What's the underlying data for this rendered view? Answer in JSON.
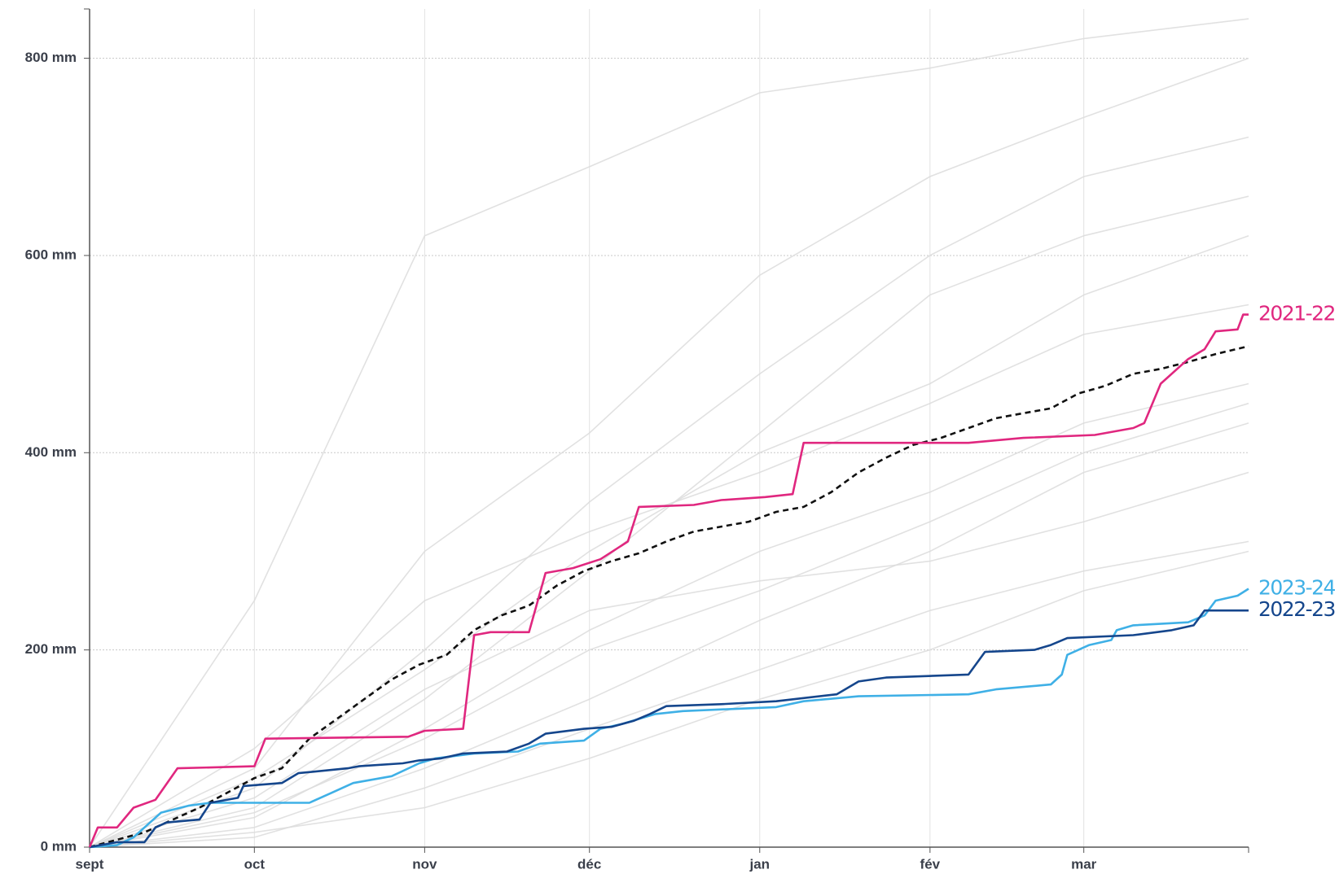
{
  "chart_data": {
    "type": "line",
    "xlim": [
      0,
      211
    ],
    "ylim": [
      0,
      850
    ],
    "xticks": [
      {
        "value": 0,
        "label": "sept"
      },
      {
        "value": 30,
        "label": "oct"
      },
      {
        "value": 61,
        "label": "nov"
      },
      {
        "value": 91,
        "label": "déc"
      },
      {
        "value": 122,
        "label": "jan"
      },
      {
        "value": 153,
        "label": "fév"
      },
      {
        "value": 181,
        "label": "mar"
      }
    ],
    "yticks": [
      {
        "value": 0,
        "label": "0 mm"
      },
      {
        "value": 200,
        "label": "200 mm"
      },
      {
        "value": 400,
        "label": "400 mm"
      },
      {
        "value": 600,
        "label": "600 mm"
      },
      {
        "value": 800,
        "label": "800 mm"
      }
    ],
    "grid": true,
    "series": [
      {
        "color": "#dcdcdc",
        "x": [
          0,
          30,
          61,
          91,
          122,
          153,
          181,
          211
        ],
        "values": [
          0,
          250,
          620,
          690,
          765,
          790,
          820,
          840
        ]
      },
      {
        "color": "#dcdcdc",
        "x": [
          0,
          30,
          61,
          91,
          122,
          153,
          181,
          211
        ],
        "values": [
          0,
          80,
          300,
          420,
          580,
          680,
          740,
          800
        ]
      },
      {
        "color": "#dcdcdc",
        "x": [
          0,
          30,
          61,
          91,
          122,
          153,
          181,
          211
        ],
        "values": [
          0,
          60,
          200,
          350,
          480,
          600,
          680,
          720
        ]
      },
      {
        "color": "#dcdcdc",
        "x": [
          0,
          30,
          61,
          91,
          122,
          153,
          181,
          211
        ],
        "values": [
          0,
          40,
          150,
          280,
          420,
          560,
          620,
          660
        ]
      },
      {
        "color": "#dcdcdc",
        "x": [
          0,
          30,
          61,
          91,
          122,
          153,
          181,
          211
        ],
        "values": [
          0,
          100,
          250,
          320,
          380,
          450,
          520,
          550
        ]
      },
      {
        "color": "#dcdcdc",
        "x": [
          0,
          30,
          61,
          91,
          122,
          153,
          181,
          211
        ],
        "values": [
          0,
          30,
          120,
          220,
          300,
          360,
          430,
          470
        ]
      },
      {
        "color": "#dcdcdc",
        "x": [
          0,
          30,
          61,
          91,
          122,
          153,
          181,
          211
        ],
        "values": [
          0,
          20,
          80,
          150,
          230,
          300,
          380,
          430
        ]
      },
      {
        "color": "#dcdcdc",
        "x": [
          0,
          30,
          61,
          91,
          122,
          153,
          181,
          211
        ],
        "values": [
          0,
          50,
          160,
          240,
          270,
          290,
          330,
          380
        ]
      },
      {
        "color": "#dcdcdc",
        "x": [
          0,
          30,
          61,
          91,
          122,
          153,
          181,
          211
        ],
        "values": [
          0,
          10,
          60,
          120,
          180,
          240,
          280,
          310
        ]
      },
      {
        "color": "#dcdcdc",
        "x": [
          0,
          30,
          61,
          91,
          122,
          153,
          181,
          211
        ],
        "values": [
          0,
          70,
          180,
          300,
          400,
          470,
          560,
          620
        ]
      },
      {
        "color": "#dcdcdc",
        "x": [
          0,
          30,
          61,
          91,
          122,
          153,
          181,
          211
        ],
        "values": [
          0,
          15,
          40,
          90,
          150,
          200,
          260,
          300
        ]
      },
      {
        "color": "#dcdcdc",
        "x": [
          0,
          30,
          61,
          91,
          122,
          153,
          181,
          211
        ],
        "values": [
          0,
          35,
          110,
          200,
          260,
          330,
          400,
          450
        ]
      },
      {
        "color": "#111111",
        "dashed": true,
        "x": [
          0,
          10,
          20,
          30,
          35,
          40,
          45,
          50,
          55,
          60,
          65,
          70,
          75,
          80,
          85,
          90,
          95,
          100,
          105,
          110,
          120,
          125,
          130,
          135,
          140,
          145,
          150,
          155,
          160,
          165,
          170,
          175,
          180,
          185,
          190,
          195,
          200,
          205,
          211
        ],
        "values": [
          0,
          15,
          40,
          70,
          80,
          110,
          130,
          150,
          170,
          185,
          195,
          220,
          235,
          245,
          265,
          280,
          290,
          298,
          310,
          320,
          330,
          340,
          345,
          360,
          380,
          395,
          408,
          415,
          425,
          435,
          440,
          445,
          460,
          468,
          480,
          485,
          492,
          500,
          508
        ]
      },
      {
        "name": "2023-24",
        "color": "#3fb0e6",
        "x": [
          0,
          5,
          8,
          10,
          13,
          18,
          22,
          40,
          44,
          48,
          55,
          60,
          63,
          70,
          78,
          82,
          90,
          93,
          97,
          103,
          108,
          125,
          130,
          140,
          160,
          165,
          175,
          177,
          178,
          182,
          186,
          187,
          190,
          200,
          203,
          205,
          209,
          211
        ],
        "values": [
          0,
          2,
          10,
          20,
          35,
          42,
          45,
          45,
          55,
          65,
          72,
          85,
          90,
          95,
          97,
          105,
          108,
          120,
          125,
          135,
          138,
          142,
          148,
          153,
          155,
          160,
          165,
          175,
          195,
          205,
          210,
          220,
          225,
          228,
          235,
          250,
          255,
          262
        ]
      },
      {
        "name": "2022-23",
        "color": "#15468c",
        "x": [
          0,
          5,
          10,
          12,
          14,
          20,
          22,
          27,
          28,
          35,
          38,
          47,
          49,
          57,
          60,
          64,
          68,
          76,
          80,
          83,
          90,
          95,
          99,
          102,
          105,
          115,
          125,
          136,
          140,
          145,
          160,
          163,
          172,
          175,
          178,
          190,
          197,
          201,
          203,
          211
        ],
        "values": [
          0,
          5,
          5,
          20,
          25,
          28,
          45,
          50,
          62,
          65,
          75,
          80,
          82,
          85,
          88,
          90,
          95,
          97,
          105,
          115,
          120,
          122,
          128,
          135,
          143,
          145,
          148,
          155,
          168,
          172,
          175,
          198,
          200,
          205,
          212,
          215,
          220,
          225,
          240,
          240
        ]
      },
      {
        "name": "2021-22",
        "color": "#e0277f",
        "x": [
          0,
          1.5,
          5,
          8,
          12,
          16,
          30,
          32,
          58,
          61,
          68,
          70,
          73,
          80,
          83,
          88,
          93,
          98,
          100,
          110,
          115,
          123,
          128,
          130,
          160,
          170,
          183,
          190,
          192,
          195,
          200,
          203,
          205,
          209,
          210,
          211
        ],
        "values": [
          0,
          20,
          20,
          40,
          48,
          80,
          82,
          110,
          112,
          118,
          120,
          215,
          218,
          218,
          278,
          283,
          292,
          310,
          345,
          347,
          352,
          355,
          358,
          410,
          410,
          415,
          418,
          425,
          430,
          470,
          495,
          505,
          523,
          525,
          540,
          540
        ]
      }
    ]
  }
}
